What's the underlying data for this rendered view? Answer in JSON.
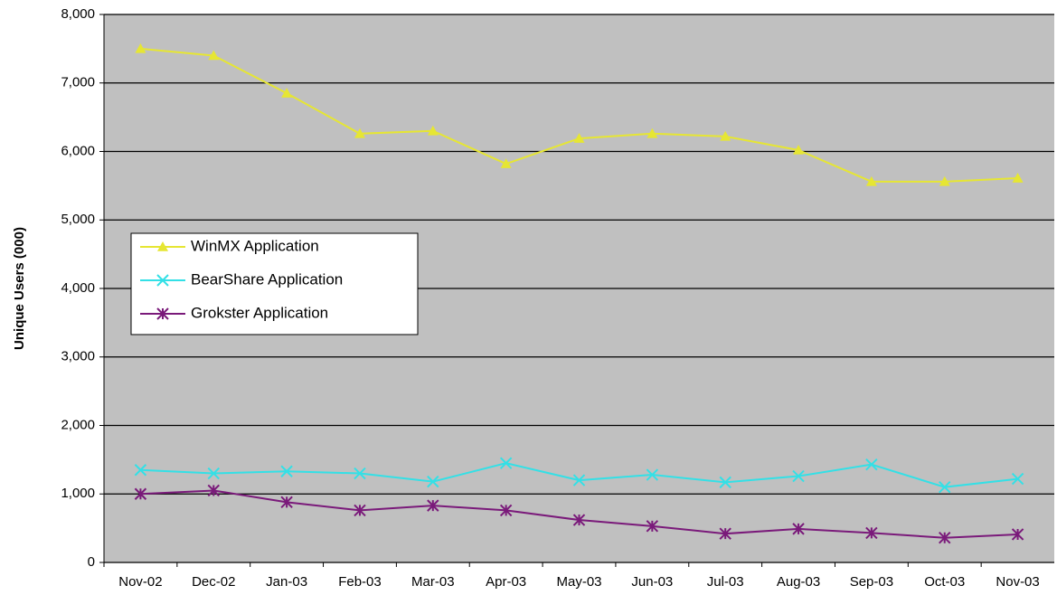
{
  "chart_data": {
    "type": "line",
    "y_label": "Unique Users (000)",
    "categories": [
      "Nov-02",
      "Dec-02",
      "Jan-03",
      "Feb-03",
      "Mar-03",
      "Apr-03",
      "May-03",
      "Jun-03",
      "Jul-03",
      "Aug-03",
      "Sep-03",
      "Oct-03",
      "Nov-03"
    ],
    "series": [
      {
        "name": "WinMX Application",
        "color": "#e6e633",
        "marker": "triangle",
        "values": [
          7500,
          7400,
          6850,
          6260,
          6300,
          5820,
          6190,
          6260,
          6220,
          6020,
          5560,
          5560,
          5610
        ]
      },
      {
        "name": "BearShare Application",
        "color": "#33e0e6",
        "marker": "x",
        "values": [
          1350,
          1300,
          1330,
          1300,
          1180,
          1450,
          1200,
          1280,
          1170,
          1260,
          1430,
          1100,
          1220
        ]
      },
      {
        "name": "Grokster Application",
        "color": "#7a1a7a",
        "marker": "asterisk",
        "values": [
          1000,
          1050,
          880,
          760,
          830,
          760,
          620,
          530,
          420,
          490,
          430,
          360,
          410
        ]
      }
    ],
    "ylim": [
      0,
      8000
    ],
    "yticks": [
      0,
      {
        "value": 1000,
        "label": "1,000"
      },
      {
        "value": 2000,
        "label": "2,000"
      },
      {
        "value": 3000,
        "label": "3,000"
      },
      {
        "value": 4000,
        "label": "4,000"
      },
      {
        "value": 5000,
        "label": "5,000"
      },
      {
        "value": 6000,
        "label": "6,000"
      },
      {
        "value": 7000,
        "label": "7,000"
      },
      {
        "value": 8000,
        "label": "8,000"
      }
    ],
    "grid": true,
    "plot_background": "#c0c0c0",
    "legend": "left"
  }
}
